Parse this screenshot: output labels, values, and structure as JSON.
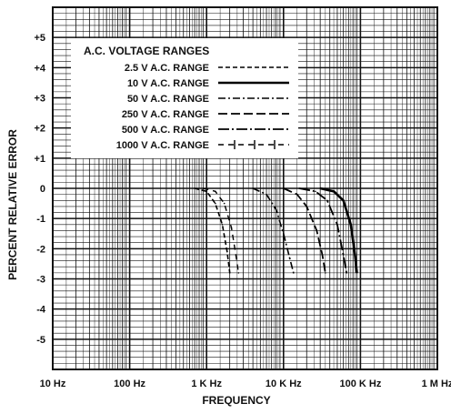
{
  "chart_data": {
    "type": "line",
    "title": "",
    "xlabel": "FREQUENCY",
    "ylabel": "PERCENT RELATIVE ERROR",
    "x_scale": "log",
    "x_ticks": [
      10,
      100,
      1000,
      10000,
      100000,
      1000000
    ],
    "x_tick_labels": [
      "10 Hz",
      "100 Hz",
      "1 K Hz",
      "10 K Hz",
      "100 K Hz",
      "1 M Hz"
    ],
    "xlim": [
      10,
      1000000
    ],
    "y_ticks": [
      5,
      4,
      3,
      2,
      1,
      0,
      -1,
      -2,
      -3,
      -4,
      -5
    ],
    "y_tick_labels": [
      "+5",
      "+4",
      "+3",
      "+2",
      "+1",
      "0",
      "-1",
      "-2",
      "-3",
      "-4",
      "-5"
    ],
    "ylim": [
      -6,
      6
    ],
    "grid": true,
    "legend_title": "A.C. VOLTAGE  RANGES",
    "legend_position": "top-left",
    "series": [
      {
        "name": "2.5 V A.C. RANGE",
        "style": "short-dash",
        "x": [
          700,
          1000,
          1300,
          1600,
          1850,
          2000
        ],
        "y": [
          0,
          -0.1,
          -0.5,
          -1.2,
          -2.1,
          -2.8
        ]
      },
      {
        "name": "10 V A.C. RANGE",
        "style": "solid",
        "x": [
          30000,
          45000,
          60000,
          75000,
          85000,
          90000
        ],
        "y": [
          0,
          -0.1,
          -0.4,
          -1.2,
          -2.2,
          -2.8
        ]
      },
      {
        "name": "50 V A.C. RANGE",
        "style": "dash-dot",
        "x": [
          4000,
          6000,
          8000,
          10000,
          12000,
          13500
        ],
        "y": [
          0,
          -0.2,
          -0.7,
          -1.5,
          -2.3,
          -2.8
        ]
      },
      {
        "name": "250 V A.C. RANGE",
        "style": "long-dash",
        "x": [
          10000,
          15000,
          20000,
          27000,
          32000,
          35000
        ],
        "y": [
          0,
          -0.2,
          -0.6,
          -1.4,
          -2.2,
          -2.8
        ]
      },
      {
        "name": "500 V A.C. RANGE",
        "style": "long-dash-dot",
        "x": [
          16000,
          26000,
          37000,
          50000,
          60000,
          66000
        ],
        "y": [
          0,
          -0.1,
          -0.4,
          -1.2,
          -2.2,
          -2.8
        ]
      },
      {
        "name": "1000 V A.C. RANGE",
        "style": "dash-plus",
        "x": [
          900,
          1300,
          1700,
          2100,
          2400,
          2600
        ],
        "y": [
          0,
          -0.1,
          -0.5,
          -1.3,
          -2.2,
          -2.8
        ]
      }
    ]
  }
}
